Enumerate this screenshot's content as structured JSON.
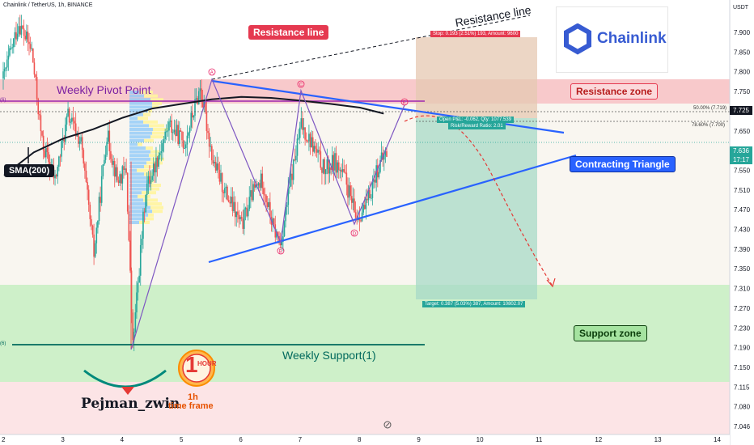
{
  "header": {
    "symbol_text": "Chainlink / TetherUS, 1h, BINANCE",
    "currency": "USDT"
  },
  "logo": {
    "text": "Chainlink",
    "color": "#375bd2"
  },
  "labels": {
    "resistance_line_box": "Resistance line",
    "resistance_line_text": "Resistance line",
    "weekly_pivot": "Weekly Pivot Point",
    "resistance_zone": "Resistance zone",
    "contracting_triangle": "Contracting Triangle",
    "support_zone": "Support zone",
    "weekly_support": "Weekly Support(1)",
    "sma": "SMA(200)",
    "author": "Pejman_zwin",
    "timeframe_top": "1h",
    "timeframe_bottom": "time frame",
    "hour_badge": "HOUR",
    "hour_digit": "1",
    "left_edge_top": "(6)",
    "left_edge_bottom": "(6)"
  },
  "position": {
    "stop_text": "Stop: 0.193 (2.51%) 193, Amount: 9600",
    "open_text": "Open P&L: -0.062, Qty: 1077.539",
    "rr_text": "Risk/Reward Ratio: 2.01",
    "target_text": "Target: 0.387 (5.03%) 387, Amount: 10802.07"
  },
  "fib": {
    "level_50": "50.00% (7.719)",
    "level_786": "78.60% (7.700)"
  },
  "wave_labels": [
    "A",
    "B",
    "C",
    "D",
    "E"
  ],
  "price_tags": {
    "resistance": "7.725",
    "current": "7.636",
    "countdown": "17:17"
  },
  "colors": {
    "bull": "#26a69a",
    "bear": "#ef5350",
    "resistance_zone": "#f5b7b9",
    "support_zone": "#a5e3a0",
    "triangle_line": "#2962ff",
    "pivot_line": "#9c27b0",
    "weekly_support_line": "#00695c",
    "sma": "#131722"
  },
  "chart_data": {
    "type": "candlestick",
    "title": "Chainlink / TetherUS, 1h, BINANCE",
    "y_ticks": [
      "7.900",
      "7.850",
      "7.800",
      "7.750",
      "7.700",
      "7.650",
      "7.600",
      "7.550",
      "7.510",
      "7.470",
      "7.430",
      "7.390",
      "7.350",
      "7.310",
      "7.270",
      "7.230",
      "7.190",
      "7.150",
      "7.115",
      "7.080",
      "7.046"
    ],
    "x_ticks": [
      "2",
      "3",
      "4",
      "5",
      "6",
      "7",
      "8",
      "9",
      "10",
      "11",
      "12",
      "13",
      "14"
    ],
    "ylim": [
      7.04,
      7.93
    ],
    "series": [
      {
        "name": "SMA(200)",
        "points": [
          [
            2.0,
            7.59
          ],
          [
            2.5,
            7.64
          ],
          [
            3.0,
            7.67
          ],
          [
            3.5,
            7.69
          ],
          [
            4.0,
            7.715
          ],
          [
            4.5,
            7.735
          ],
          [
            5.0,
            7.745
          ],
          [
            5.5,
            7.755
          ],
          [
            6.0,
            7.76
          ],
          [
            6.5,
            7.758
          ],
          [
            7.0,
            7.752
          ],
          [
            7.5,
            7.745
          ],
          [
            8.0,
            7.737
          ],
          [
            8.4,
            7.724
          ]
        ]
      }
    ],
    "candles_seed": "price path from 2.0 to 8.45 (generated)",
    "wave_points": [
      {
        "label": "A",
        "x": 5.5,
        "y": 7.8
      },
      {
        "label": "B",
        "x": 6.65,
        "y": 7.43
      },
      {
        "label": "C",
        "x": 7.0,
        "y": 7.77
      },
      {
        "label": "D",
        "x": 7.95,
        "y": 7.47
      },
      {
        "label": "E",
        "x": 8.75,
        "y": 7.75
      }
    ],
    "levels": [
      {
        "name": "Weekly Pivot Point",
        "y": 7.753
      },
      {
        "name": "Weekly Support(1)",
        "y": 7.216
      },
      {
        "name": "Fib 50.00%",
        "y": 7.719
      },
      {
        "name": "Fib 78.60%",
        "y": 7.7
      }
    ],
    "zones": [
      {
        "name": "Resistance zone",
        "from": 7.725,
        "to": 7.8
      },
      {
        "name": "Support zone",
        "from": 7.15,
        "to": 7.347
      }
    ],
    "position": {
      "entry": 7.7,
      "stop": 7.893,
      "target": 7.313
    },
    "grid": false
  }
}
